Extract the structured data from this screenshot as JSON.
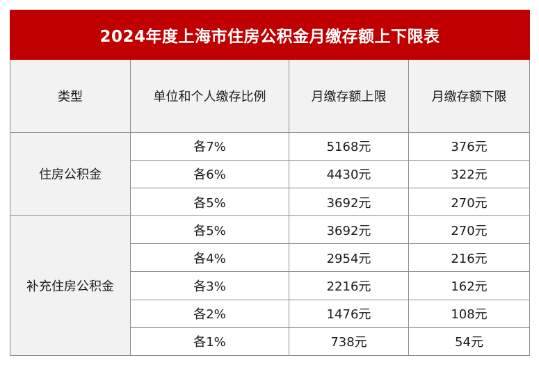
{
  "title": "2024年度上海市住房公积金月缴存额上下限表",
  "headers": [
    "类型",
    "单位和个人缴存比例",
    "月缴存额上限",
    "月缴存额下限"
  ],
  "groups": [
    {
      "type": "住房公积金",
      "rows": [
        {
          "ratio": "各7%",
          "upper": "5168元",
          "lower": "376元"
        },
        {
          "ratio": "各6%",
          "upper": "4430元",
          "lower": "322元"
        },
        {
          "ratio": "各5%",
          "upper": "3692元",
          "lower": "270元"
        }
      ]
    },
    {
      "type": "补充住房公积金",
      "rows": [
        {
          "ratio": "各5%",
          "upper": "3692元",
          "lower": "270元"
        },
        {
          "ratio": "各4%",
          "upper": "2954元",
          "lower": "216元"
        },
        {
          "ratio": "各3%",
          "upper": "2216元",
          "lower": "162元"
        },
        {
          "ratio": "各2%",
          "upper": "1476元",
          "lower": "108元"
        },
        {
          "ratio": "各1%",
          "upper": "738元",
          "lower": "54元"
        }
      ]
    }
  ],
  "colors": {
    "title_bg": "#c00000",
    "header_bg": "#f2f2f2",
    "border": "#8a8a8a"
  }
}
